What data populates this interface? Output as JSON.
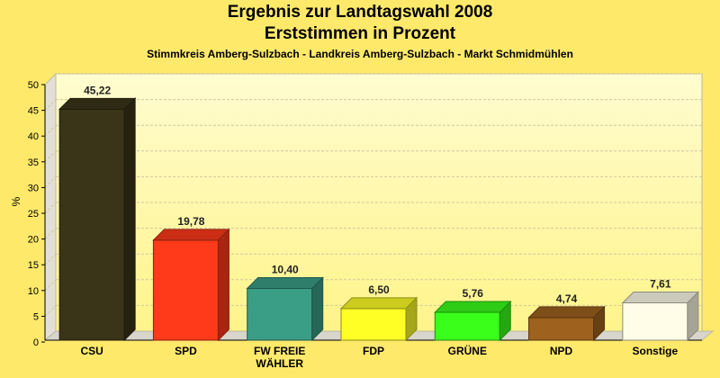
{
  "title": "Ergebnis zur Landtagswahl 2008",
  "subtitle": "Erststimmen in Prozent",
  "subtitle2": "Stimmkreis Amberg-Sulzbach - Landkreis Amberg-Sulzbach - Markt Schmidmühlen",
  "chart_data": {
    "type": "bar",
    "title": "Ergebnis zur Landtagswahl 2008",
    "subtitle": "Erststimmen in Prozent",
    "ylabel": "%",
    "xlabel": "",
    "ylim": [
      0,
      50
    ],
    "yticks": [
      0,
      5,
      10,
      15,
      20,
      25,
      30,
      35,
      40,
      45,
      50
    ],
    "grid": true,
    "categories": [
      "CSU",
      "SPD",
      "FW FREIE WÄHLER",
      "FDP",
      "GRÜNE",
      "NPD",
      "Sonstige"
    ],
    "category_lines": [
      [
        "CSU"
      ],
      [
        "SPD"
      ],
      [
        "FW FREIE",
        "WÄHLER"
      ],
      [
        "FDP"
      ],
      [
        "GRÜNE"
      ],
      [
        "NPD"
      ],
      [
        "Sonstige"
      ]
    ],
    "values": [
      45.22,
      19.78,
      10.4,
      6.5,
      5.76,
      4.74,
      7.61
    ],
    "value_labels": [
      "45,22",
      "19,78",
      "10,40",
      "6,50",
      "5,76",
      "4,74",
      "7,61"
    ],
    "colors": [
      "#3A3418",
      "#FF3A1A",
      "#3A9E86",
      "#FFFF26",
      "#3AFF1A",
      "#9E621E",
      "#FFFDE8"
    ]
  }
}
